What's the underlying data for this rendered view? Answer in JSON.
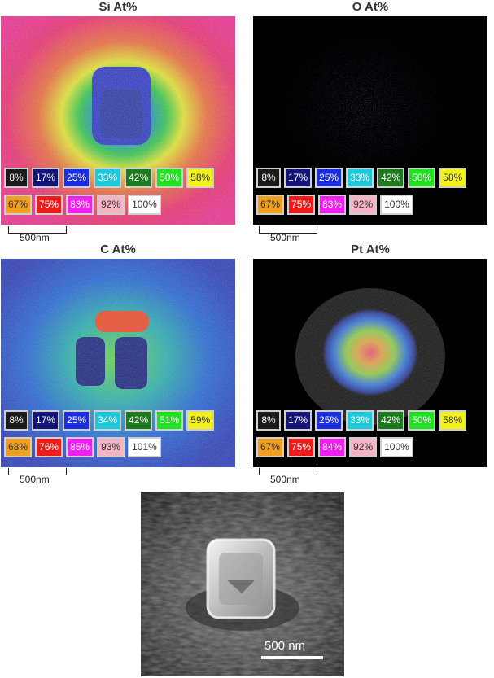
{
  "panels": [
    {
      "id": "si",
      "title": "Si At%",
      "legend_row1": [
        "8%",
        "17%",
        "25%",
        "33%",
        "42%",
        "50%",
        "58%"
      ],
      "legend_row2": [
        "67%",
        "75%",
        "83%",
        "92%",
        "100%"
      ],
      "scalebar": "500nm"
    },
    {
      "id": "o",
      "title": "O At%",
      "legend_row1": [
        "8%",
        "17%",
        "25%",
        "33%",
        "42%",
        "50%",
        "58%"
      ],
      "legend_row2": [
        "67%",
        "75%",
        "83%",
        "92%",
        "100%"
      ],
      "scalebar": "500nm"
    },
    {
      "id": "c",
      "title": "C At%",
      "legend_row1": [
        "8%",
        "17%",
        "25%",
        "34%",
        "42%",
        "51%",
        "59%"
      ],
      "legend_row2": [
        "68%",
        "76%",
        "85%",
        "93%",
        "101%"
      ],
      "scalebar": "500nm"
    },
    {
      "id": "pt",
      "title": "Pt At%",
      "legend_row1": [
        "8%",
        "17%",
        "25%",
        "33%",
        "42%",
        "50%",
        "58%"
      ],
      "legend_row2": [
        "67%",
        "75%",
        "84%",
        "92%",
        "100%"
      ],
      "scalebar": "500nm"
    }
  ],
  "legend_colors": {
    "row1_bg": [
      "#1a1a1a",
      "#141478",
      "#1a2ee0",
      "#1ec8d8",
      "#1e7a1e",
      "#22e022",
      "#f2f21a"
    ],
    "row1_fg": [
      "#ffffff",
      "#ffffff",
      "#ffffff",
      "#ffffff",
      "#ffffff",
      "#ffffff",
      "#333333"
    ],
    "row2_bg": [
      "#f0a01e",
      "#f01a1a",
      "#f01ef0",
      "#f4b4c4",
      "#ffffff"
    ],
    "row2_fg": [
      "#333333",
      "#ffffff",
      "#ffffff",
      "#333333",
      "#333333"
    ]
  },
  "sem": {
    "scalebar": "500 nm"
  }
}
